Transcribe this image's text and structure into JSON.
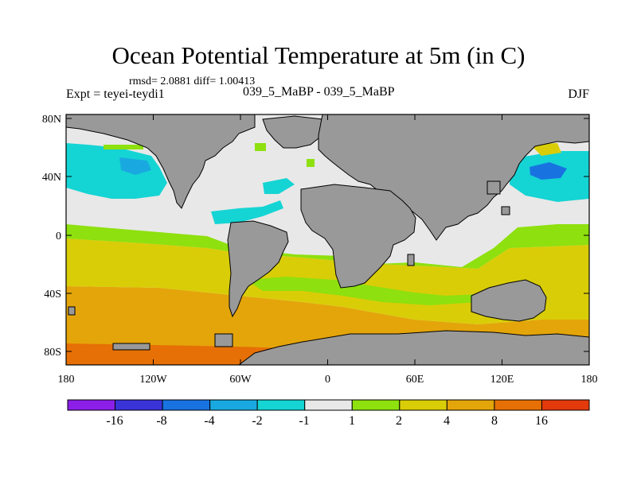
{
  "title": "Ocean Potential Temperature at 5m (in C)",
  "stats": "rmsd= 2.0881 diff= 1.00413",
  "experiment": "Expt = teyei-teydi1",
  "cases": "039_5_MaBP - 039_5_MaBP",
  "season": "DJF",
  "axes": {
    "x_ticks": [
      "180",
      "120W",
      "60W",
      "0",
      "60E",
      "120E",
      "180"
    ],
    "y_ticks": [
      "80N",
      "40N",
      "0",
      "40S",
      "80S"
    ]
  },
  "colorbar": {
    "colors": [
      "#8b1fe8",
      "#3a33d8",
      "#1873e0",
      "#19a9e0",
      "#15d4d4",
      "#e8e8e8",
      "#8ee00e",
      "#d9cd08",
      "#e4a50a",
      "#e67005",
      "#e23a0c"
    ],
    "labels": [
      "-16",
      "-8",
      "-4",
      "-2",
      "-1",
      "1",
      "2",
      "4",
      "8",
      "16"
    ]
  },
  "colors": {
    "land": "#999999",
    "background": "#e8e8e8"
  }
}
